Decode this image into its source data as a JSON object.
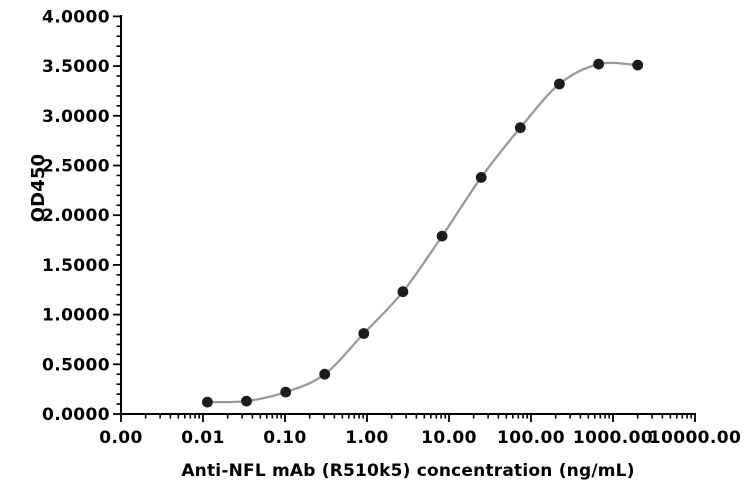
{
  "chart_data": {
    "type": "scatter",
    "title": "",
    "xlabel": "Anti-NFL mAb (R510k5) concentration (ng/mL)",
    "ylabel": "OD450",
    "x_scale": "log",
    "xlim": [
      0.001,
      10000
    ],
    "ylim": [
      0.0,
      4.0
    ],
    "grid": false,
    "legend": "none",
    "series": [
      {
        "name": "Anti-NFL mAb (R510k5)",
        "marker": "circle",
        "line_style": "smooth",
        "x": [
          0.0113,
          0.0339,
          0.102,
          0.305,
          0.914,
          2.74,
          8.23,
          24.69,
          74.07,
          222.22,
          666.67,
          2000
        ],
        "y": [
          0.12,
          0.13,
          0.22,
          0.4,
          0.81,
          1.23,
          1.79,
          2.38,
          2.88,
          3.32,
          3.52,
          3.51
        ]
      }
    ],
    "x_ticks": [
      {
        "v": 0.001,
        "label": "0.00"
      },
      {
        "v": 0.01,
        "label": "0.01"
      },
      {
        "v": 0.1,
        "label": "0.10"
      },
      {
        "v": 1,
        "label": "1.00"
      },
      {
        "v": 10,
        "label": "10.00"
      },
      {
        "v": 100,
        "label": "100.00"
      },
      {
        "v": 1000,
        "label": "1000.00"
      },
      {
        "v": 10000,
        "label": "10000.00"
      }
    ],
    "y_ticks": [
      {
        "v": 0.0,
        "label": "0.0000"
      },
      {
        "v": 0.5,
        "label": "0.5000"
      },
      {
        "v": 1.0,
        "label": "1.0000"
      },
      {
        "v": 1.5,
        "label": "1.5000"
      },
      {
        "v": 2.0,
        "label": "2.0000"
      },
      {
        "v": 2.5,
        "label": "2.5000"
      },
      {
        "v": 3.0,
        "label": "3.0000"
      },
      {
        "v": 3.5,
        "label": "3.5000"
      },
      {
        "v": 4.0,
        "label": "4.0000"
      }
    ],
    "colors": {
      "background": "#ffffff",
      "axis": "#000000",
      "text": "#000000",
      "line": "#9a9a9a",
      "marker": "#1c1c1c"
    }
  }
}
